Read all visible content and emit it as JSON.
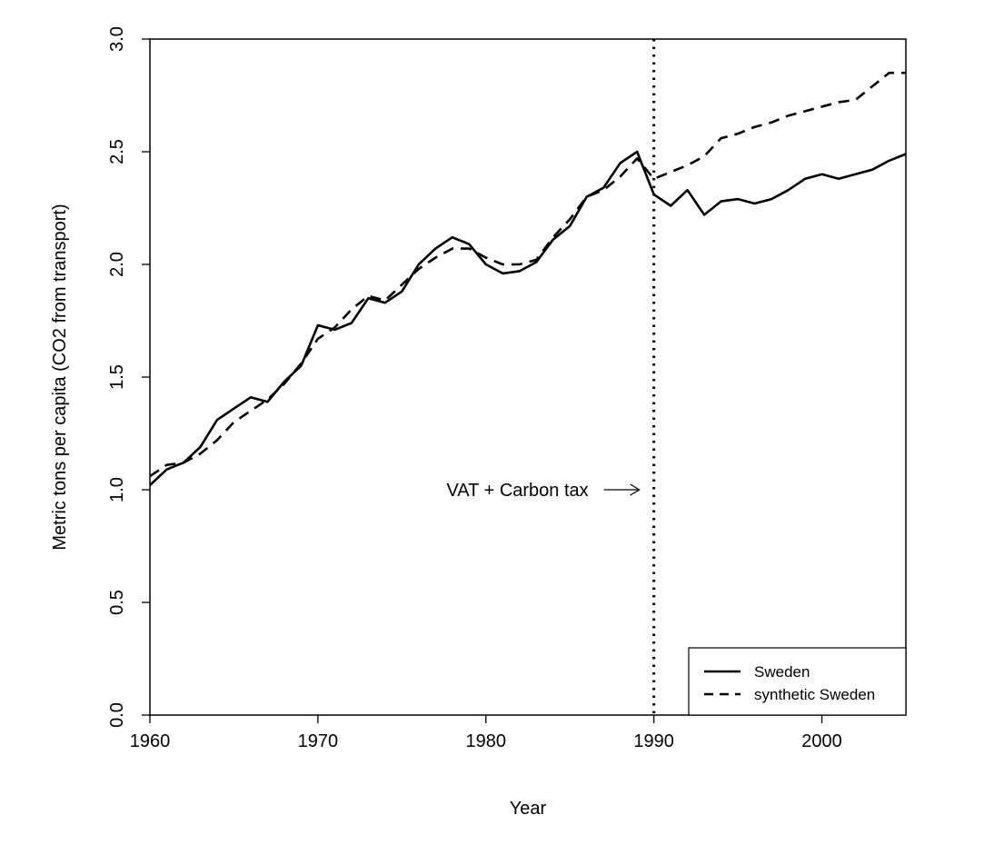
{
  "chart_data": {
    "type": "line",
    "xlabel": "Year",
    "ylabel": "Metric tons per capita (CO2 from transport)",
    "xlim": [
      1960,
      2005
    ],
    "ylim": [
      0,
      3
    ],
    "x_ticks": [
      "1960",
      "1970",
      "1980",
      "1990",
      "2000"
    ],
    "y_ticks": [
      "0.0",
      "0.5",
      "1.0",
      "1.5",
      "2.0",
      "2.5",
      "3.0"
    ],
    "x": [
      1960,
      1961,
      1962,
      1963,
      1964,
      1965,
      1966,
      1967,
      1968,
      1969,
      1970,
      1971,
      1972,
      1973,
      1974,
      1975,
      1976,
      1977,
      1978,
      1979,
      1980,
      1981,
      1982,
      1983,
      1984,
      1985,
      1986,
      1987,
      1988,
      1989,
      1990,
      1991,
      1992,
      1993,
      1994,
      1995,
      1996,
      1997,
      1998,
      1999,
      2000,
      2001,
      2002,
      2003,
      2004,
      2005
    ],
    "series": [
      {
        "name": "Sweden",
        "style": "solid",
        "values": [
          1.02,
          1.09,
          1.12,
          1.19,
          1.31,
          1.36,
          1.41,
          1.39,
          1.48,
          1.55,
          1.73,
          1.71,
          1.74,
          1.85,
          1.83,
          1.88,
          2.0,
          2.07,
          2.12,
          2.09,
          2.0,
          1.96,
          1.97,
          2.01,
          2.11,
          2.17,
          2.3,
          2.34,
          2.45,
          2.5,
          2.31,
          2.26,
          2.33,
          2.22,
          2.28,
          2.29,
          2.27,
          2.29,
          2.33,
          2.38,
          2.4,
          2.38,
          2.4,
          2.42,
          2.46,
          2.49
        ]
      },
      {
        "name": "synthetic Sweden",
        "style": "dashed",
        "values": [
          1.06,
          1.11,
          1.12,
          1.16,
          1.22,
          1.3,
          1.35,
          1.4,
          1.47,
          1.56,
          1.67,
          1.72,
          1.8,
          1.86,
          1.84,
          1.91,
          1.98,
          2.03,
          2.07,
          2.07,
          2.03,
          2.0,
          2.0,
          2.02,
          2.12,
          2.2,
          2.3,
          2.33,
          2.39,
          2.47,
          2.38,
          2.41,
          2.44,
          2.48,
          2.56,
          2.58,
          2.61,
          2.63,
          2.66,
          2.68,
          2.7,
          2.72,
          2.73,
          2.79,
          2.85,
          2.85
        ]
      }
    ],
    "vline": {
      "x": 1990,
      "style": "dotted"
    },
    "annotation": {
      "text": "VAT + Carbon tax",
      "x": 1990,
      "y": 1.0
    },
    "legend_position": "bottom-right",
    "grid": false
  }
}
